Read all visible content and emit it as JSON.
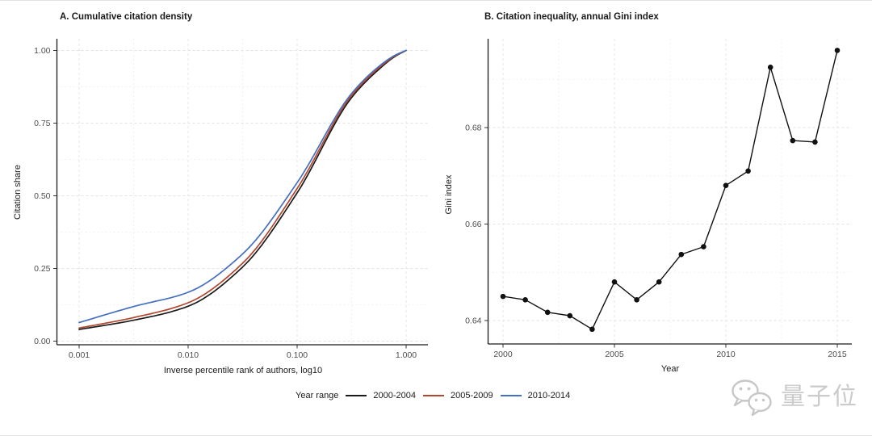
{
  "page": {
    "background": "#ffffff"
  },
  "legend": {
    "title": "Year range",
    "items": [
      {
        "label": "2000-2004",
        "color": "#1a1a1a"
      },
      {
        "label": "2005-2009",
        "color": "#b2462e"
      },
      {
        "label": "2010-2014",
        "color": "#4470bf"
      }
    ]
  },
  "watermark": {
    "icon": "wechat-icon",
    "text": "量子位",
    "color": "#c9c9c9"
  },
  "chart_data": [
    {
      "type": "line",
      "panel": "A",
      "title": "A. Cumulative citation density",
      "xlabel": "Inverse percentile rank of authors, log10",
      "ylabel": "Citation share",
      "xscale": "log10",
      "xlim": [
        0.001,
        1.0
      ],
      "ylim": [
        0.0,
        1.0
      ],
      "xticks": [
        "0.001",
        "0.010",
        "0.100",
        "1.000"
      ],
      "xtick_log10": [
        -3,
        -2,
        -1,
        0
      ],
      "xminor_log10": [
        -2.5,
        -1.5,
        -0.5
      ],
      "yticks": [
        "0.00",
        "0.25",
        "0.50",
        "0.75",
        "1.00"
      ],
      "ytick_values": [
        0,
        0.25,
        0.5,
        0.75,
        1.0
      ],
      "yminor_values": [
        0.125,
        0.375,
        0.625,
        0.875
      ],
      "grid": "dashed",
      "legend_position": "bottom",
      "series": [
        {
          "name": "2000-2004",
          "color": "#1a1a1a",
          "x_log10": [
            -3,
            -2.5,
            -2,
            -1.5,
            -1,
            -0.5,
            -0.25,
            -0.1,
            0
          ],
          "values": [
            0.04,
            0.072,
            0.12,
            0.255,
            0.51,
            0.838,
            0.935,
            0.98,
            1.0
          ]
        },
        {
          "name": "2005-2009",
          "color": "#b2462e",
          "x_log10": [
            -3,
            -2.5,
            -2,
            -1.5,
            -1,
            -0.5,
            -0.25,
            -0.1,
            0
          ],
          "values": [
            0.045,
            0.081,
            0.132,
            0.268,
            0.525,
            0.845,
            0.94,
            0.982,
            1.0
          ]
        },
        {
          "name": "2010-2014",
          "color": "#4470bf",
          "x_log10": [
            -3,
            -2.5,
            -2,
            -1.5,
            -1,
            -0.5,
            -0.25,
            -0.1,
            0
          ],
          "values": [
            0.064,
            0.119,
            0.168,
            0.3,
            0.545,
            0.852,
            0.945,
            0.984,
            1.0
          ]
        }
      ]
    },
    {
      "type": "line",
      "panel": "B",
      "title": "B. Citation inequality, annual Gini index",
      "xlabel": "Year",
      "ylabel": "Gini index",
      "marker": "point",
      "xticks": [
        2000,
        2005,
        2010,
        2015
      ],
      "xminor": [
        2002.5,
        2007.5,
        2012.5
      ],
      "yticks": [
        "0.64",
        "0.66",
        "0.68"
      ],
      "ytick_values": [
        0.64,
        0.66,
        0.68
      ],
      "yminor_values": [
        0.65,
        0.67,
        0.69
      ],
      "ylim": [
        0.6355,
        0.699
      ],
      "grid": "dashed",
      "x": [
        2000,
        2001,
        2002,
        2003,
        2004,
        2005,
        2006,
        2007,
        2008,
        2009,
        2010,
        2011,
        2012,
        2013,
        2014,
        2015
      ],
      "values": [
        0.645,
        0.6443,
        0.6417,
        0.641,
        0.6382,
        0.648,
        0.6443,
        0.648,
        0.6537,
        0.6553,
        0.668,
        0.671,
        0.6925,
        0.6773,
        0.677,
        0.696
      ]
    }
  ]
}
